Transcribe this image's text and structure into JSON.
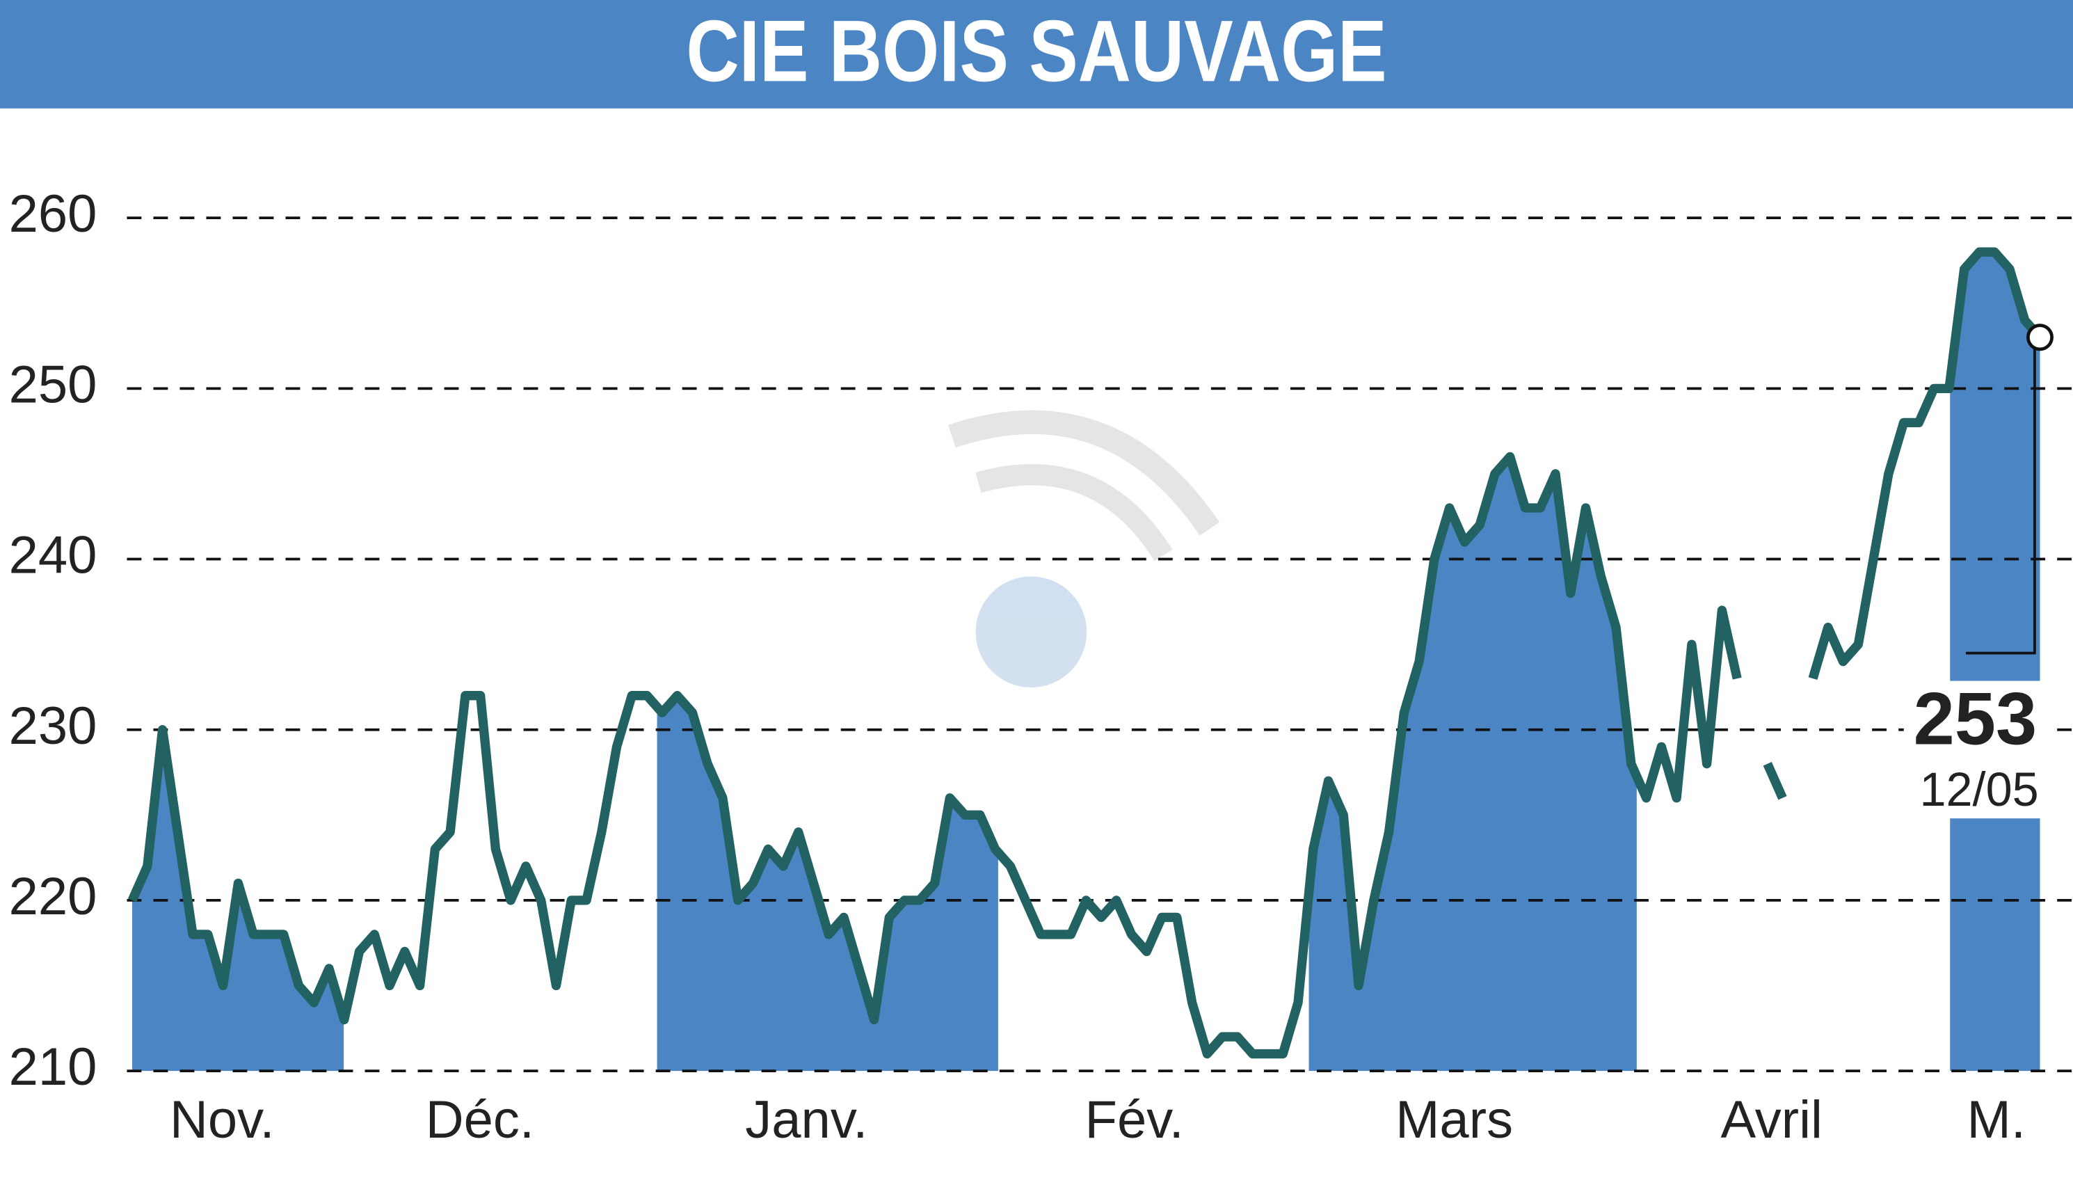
{
  "chart_data": {
    "type": "line",
    "title": "CIE BOIS SAUVAGE",
    "months": [
      "Nov.",
      "Déc.",
      "Janv.",
      "Fév.",
      "Mars",
      "Avril",
      "M."
    ],
    "series": [
      {
        "color": "#226262",
        "values": [
          220,
          222,
          230,
          224,
          218,
          218,
          215,
          221,
          218,
          218,
          218,
          215,
          214,
          216,
          213,
          217,
          218,
          215,
          217,
          215,
          223,
          224,
          232,
          232,
          223,
          220,
          222,
          220,
          215,
          220,
          220,
          224,
          229,
          232,
          232,
          231,
          232,
          231,
          228,
          226,
          220,
          221,
          223,
          222,
          224,
          221,
          218,
          219,
          216,
          213,
          219,
          220,
          220,
          221,
          226,
          225,
          225,
          223,
          222,
          220,
          218,
          218,
          218,
          220,
          219,
          220,
          218,
          217,
          219,
          219,
          214,
          211,
          212,
          212,
          211,
          211,
          211,
          214,
          223,
          227,
          225,
          215,
          220,
          224,
          231,
          234,
          240,
          243,
          241,
          242,
          245,
          246,
          243,
          243,
          245,
          238,
          243,
          239,
          236,
          228,
          226,
          229,
          226,
          235,
          228,
          237,
          233,
          null,
          228,
          226,
          null,
          233,
          236,
          234,
          235,
          240,
          245,
          248,
          248,
          250,
          250,
          257,
          258,
          258,
          257,
          254,
          253
        ]
      }
    ],
    "band_color": "#4c85c4",
    "ylim": [
      210,
      262
    ],
    "yticks": [
      210,
      220,
      230,
      240,
      250,
      260
    ],
    "grid": true,
    "last_date": "12/05"
  }
}
